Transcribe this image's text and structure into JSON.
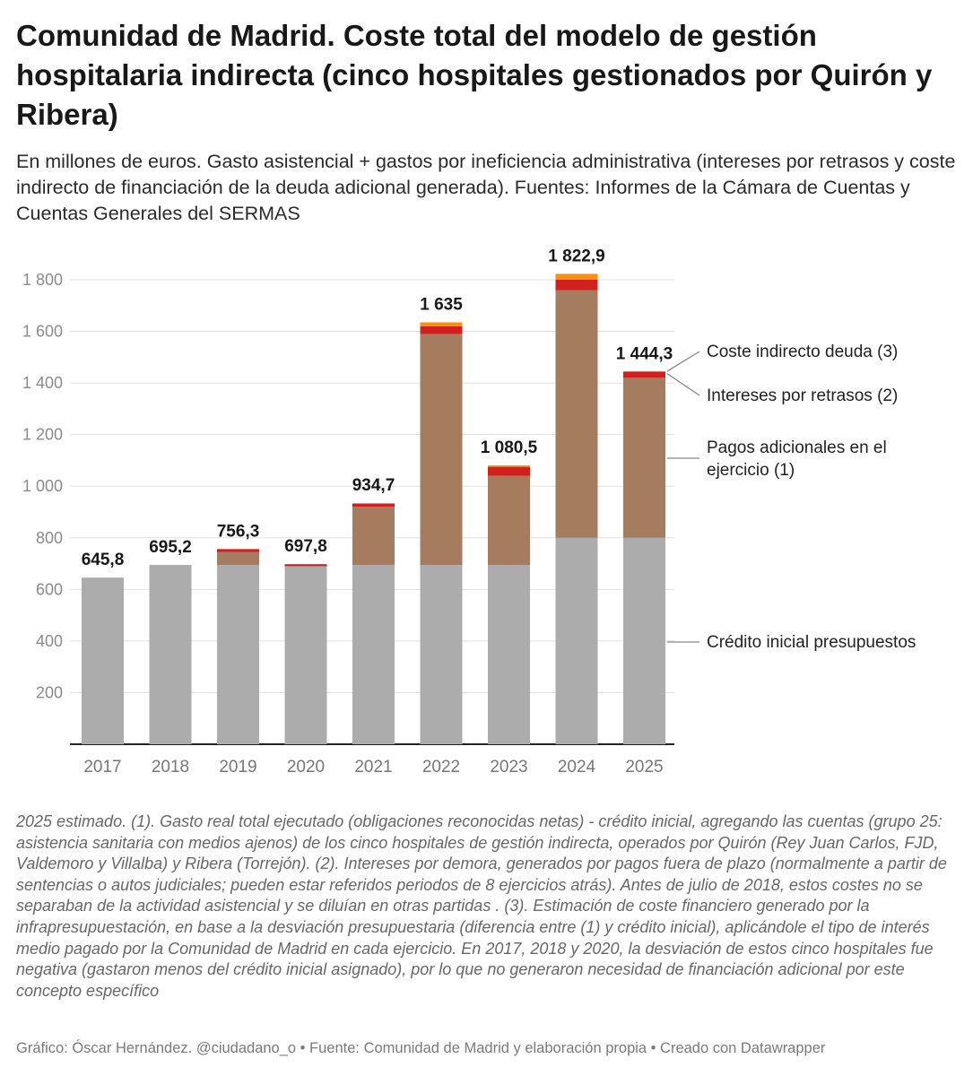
{
  "header": {
    "title": "Comunidad de Madrid. Coste total del modelo de gestión hospitalaria indirecta (cinco hospitales gestionados por Quirón y Ribera)",
    "subtitle": "En millones de euros. Gasto asistencial + gastos por ineficiencia administrativa (intereses por retrasos y coste indirecto de financiación de la deuda adicional generada). Fuentes: Informes de la Cámara de Cuentas y Cuentas Generales del SERMAS"
  },
  "chart_data": {
    "type": "bar",
    "stacked": true,
    "categories": [
      "2017",
      "2018",
      "2019",
      "2020",
      "2021",
      "2022",
      "2023",
      "2024",
      "2025"
    ],
    "series": [
      {
        "name": "Crédito inicial presupuestos",
        "color": "#acacac",
        "values": [
          645.8,
          695.2,
          695,
          690,
          695,
          695,
          695,
          800,
          800
        ]
      },
      {
        "name": "Pagos adicionales en el ejercicio (1)",
        "color": "#a67c5f",
        "values": [
          0,
          0,
          50,
          0,
          225,
          895,
          345,
          960,
          620
        ]
      },
      {
        "name": "Intereses por retrasos (2)",
        "color": "#d1201e",
        "values": [
          0,
          0,
          11.3,
          7.8,
          11.7,
          30,
          35,
          40,
          24.3
        ]
      },
      {
        "name": "Coste indirecto deuda (3)",
        "color": "#f29311",
        "values": [
          0,
          0,
          0,
          0,
          3,
          15,
          5.5,
          22.9,
          0
        ]
      }
    ],
    "totals": [
      "645,8",
      "695,2",
      "756,3",
      "697,8",
      "934,7",
      "1 635",
      "1 080,5",
      "1 822,9",
      "1 444,3"
    ],
    "y_ticks": [
      "200",
      "400",
      "600",
      "800",
      "1 000",
      "1 200",
      "1 400",
      "1 600",
      "1 800"
    ],
    "ylim": [
      0,
      1800
    ],
    "legend_labels": [
      {
        "text": "Coste indirecto deuda (3)",
        "series": 3
      },
      {
        "text": "Intereses por retrasos (2)",
        "series": 2
      },
      {
        "text": "Pagos adicionales en el ejercicio (1)",
        "series": 1
      },
      {
        "text": "Crédito inicial presupuestos",
        "series": 0
      }
    ],
    "legend_placement": "right, inline labels for last bar"
  },
  "notes": "2025 estimado. (1). Gasto real total ejecutado (obligaciones reconocidas netas) - crédito inicial, agregando las cuentas (grupo 25: asistencia sanitaria con medios ajenos) de los cinco hospitales de gestión indirecta, operados por Quirón (Rey Juan Carlos, FJD, Valdemoro y Villalba) y Ribera (Torrejón). (2). Intereses por demora, generados por pagos fuera de plazo (normalmente a partir de sentencias o autos judiciales; pueden estar referidos periodos de 8 ejercicios atrás). Antes de julio de 2018, estos costes no se separaban de la actividad asistencial y se diluían en otras partidas . (3). Estimación de coste financiero generado por la infrapresupuestación, en base a la desviación presupuestaria (diferencia entre (1) y crédito inicial), aplicándole el tipo de interés medio pagado por la Comunidad de Madrid en cada ejercicio. En 2017, 2018 y 2020, la desviación de estos cinco hospitales fue negativa (gastaron menos del crédito inicial asignado), por lo que no generaron necesidad de financiación adicional por este concepto específico",
  "footer": "Gráfico: Óscar Hernández. @ciudadano_o • Fuente: Comunidad de Madrid y elaboración propia • Creado con Datawrapper"
}
